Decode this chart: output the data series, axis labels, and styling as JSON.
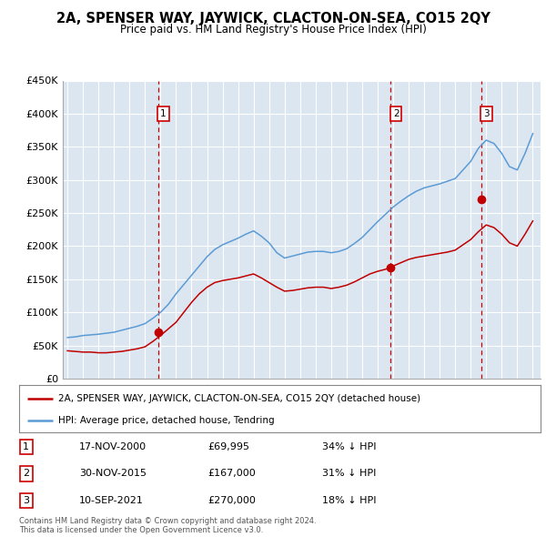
{
  "title": "2A, SPENSER WAY, JAYWICK, CLACTON-ON-SEA, CO15 2QY",
  "subtitle": "Price paid vs. HM Land Registry's House Price Index (HPI)",
  "ylim": [
    0,
    450000
  ],
  "yticks": [
    0,
    50000,
    100000,
    150000,
    200000,
    250000,
    300000,
    350000,
    400000,
    450000
  ],
  "ytick_labels": [
    "£0",
    "£50K",
    "£100K",
    "£150K",
    "£200K",
    "£250K",
    "£300K",
    "£350K",
    "£400K",
    "£450K"
  ],
  "plot_bg_color": "#dce6f1",
  "sale_dates": [
    "2000-11-17",
    "2015-11-30",
    "2021-09-10"
  ],
  "sale_prices": [
    69995,
    167000,
    270000
  ],
  "sale_labels": [
    "1",
    "2",
    "3"
  ],
  "sale_date_strs": [
    "17-NOV-2000",
    "30-NOV-2015",
    "10-SEP-2021"
  ],
  "sale_pct": [
    "34%",
    "31%",
    "18%"
  ],
  "hpi_color": "#5b9bd5",
  "sale_line_color": "#c00000",
  "vline_color": "#cc0000",
  "legend_label_red": "2A, SPENSER WAY, JAYWICK, CLACTON-ON-SEA, CO15 2QY (detached house)",
  "legend_label_blue": "HPI: Average price, detached house, Tendring",
  "footer": "Contains HM Land Registry data © Crown copyright and database right 2024.\nThis data is licensed under the Open Government Licence v3.0.",
  "hpi_years": [
    1995,
    1995.5,
    1996,
    1996.5,
    1997,
    1997.5,
    1998,
    1998.5,
    1999,
    1999.5,
    2000,
    2000.5,
    2001,
    2001.5,
    2002,
    2002.5,
    2003,
    2003.5,
    2004,
    2004.5,
    2005,
    2005.5,
    2006,
    2006.5,
    2007,
    2007.5,
    2008,
    2008.5,
    2009,
    2009.5,
    2010,
    2010.5,
    2011,
    2011.5,
    2012,
    2012.5,
    2013,
    2013.5,
    2014,
    2014.5,
    2015,
    2015.5,
    2016,
    2016.5,
    2017,
    2017.5,
    2018,
    2018.5,
    2019,
    2019.5,
    2020,
    2020.5,
    2021,
    2021.5,
    2022,
    2022.5,
    2023,
    2023.5,
    2024,
    2024.5,
    2025
  ],
  "hpi_values": [
    62000,
    63000,
    65000,
    66000,
    67000,
    68500,
    70000,
    73000,
    76000,
    79000,
    83000,
    91000,
    100000,
    112000,
    128000,
    142000,
    156000,
    170000,
    184000,
    195000,
    202000,
    207000,
    212000,
    218000,
    223000,
    215000,
    205000,
    190000,
    182000,
    185000,
    188000,
    191000,
    192000,
    192000,
    190000,
    192000,
    196000,
    204000,
    213000,
    225000,
    237000,
    248000,
    259000,
    268000,
    276000,
    283000,
    288000,
    291000,
    294000,
    298000,
    302000,
    315000,
    328000,
    348000,
    360000,
    355000,
    340000,
    320000,
    315000,
    340000,
    370000
  ],
  "red_years": [
    1995,
    1995.5,
    1996,
    1996.5,
    1997,
    1997.5,
    1998,
    1998.5,
    1999,
    1999.5,
    2000,
    2000.5,
    2001,
    2001.5,
    2002,
    2002.5,
    2003,
    2003.5,
    2004,
    2004.5,
    2005,
    2005.5,
    2006,
    2006.5,
    2007,
    2007.5,
    2008,
    2008.5,
    2009,
    2009.5,
    2010,
    2010.5,
    2011,
    2011.5,
    2012,
    2012.5,
    2013,
    2013.5,
    2014,
    2014.5,
    2015,
    2015.5,
    2016,
    2016.5,
    2017,
    2017.5,
    2018,
    2018.5,
    2019,
    2019.5,
    2020,
    2020.5,
    2021,
    2021.5,
    2022,
    2022.5,
    2023,
    2023.5,
    2024,
    2024.5,
    2025
  ],
  "red_values": [
    42000,
    41000,
    40000,
    40000,
    39000,
    39000,
    40000,
    41000,
    43000,
    45000,
    48000,
    56000,
    65000,
    75000,
    85000,
    100000,
    115000,
    128000,
    138000,
    145000,
    148000,
    150000,
    152000,
    155000,
    158000,
    152000,
    145000,
    138000,
    132000,
    133000,
    135000,
    137000,
    138000,
    138000,
    136000,
    138000,
    141000,
    146000,
    152000,
    158000,
    162000,
    165000,
    170000,
    175000,
    180000,
    183000,
    185000,
    187000,
    189000,
    191000,
    194000,
    202000,
    210000,
    222000,
    232000,
    228000,
    218000,
    205000,
    200000,
    218000,
    238000
  ]
}
